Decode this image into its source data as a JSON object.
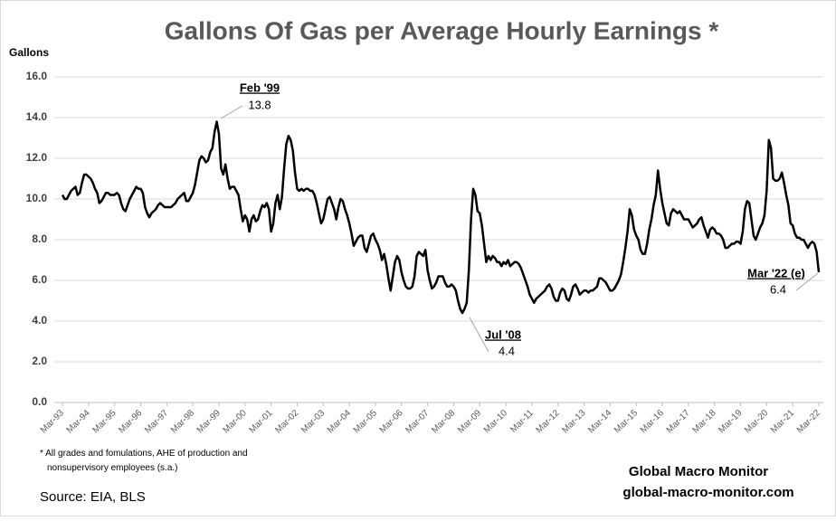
{
  "chart_data": {
    "type": "line",
    "title": "Gallons Of Gas per Average Hourly Earnings *",
    "y_label": "Gallons",
    "categories": [
      "Mar-93",
      null,
      null,
      null,
      null,
      null,
      null,
      null,
      null,
      null,
      null,
      null,
      "Mar-94",
      null,
      null,
      null,
      null,
      null,
      null,
      null,
      null,
      null,
      null,
      null,
      "Mar-95",
      null,
      null,
      null,
      null,
      null,
      null,
      null,
      null,
      null,
      null,
      null,
      "Mar-96",
      null,
      null,
      null,
      null,
      null,
      null,
      null,
      null,
      null,
      null,
      null,
      "Mar-97",
      null,
      null,
      null,
      null,
      null,
      null,
      null,
      null,
      null,
      null,
      null,
      "Mar-98",
      null,
      null,
      null,
      null,
      null,
      null,
      null,
      null,
      null,
      null,
      null,
      "Mar-99",
      null,
      null,
      null,
      null,
      null,
      null,
      null,
      null,
      null,
      null,
      null,
      "Mar-00",
      null,
      null,
      null,
      null,
      null,
      null,
      null,
      null,
      null,
      null,
      null,
      "Mar-01",
      null,
      null,
      null,
      null,
      null,
      null,
      null,
      null,
      null,
      null,
      null,
      "Mar-02",
      null,
      null,
      null,
      null,
      null,
      null,
      null,
      null,
      null,
      null,
      null,
      "Mar-03",
      null,
      null,
      null,
      null,
      null,
      null,
      null,
      null,
      null,
      null,
      null,
      "Mar-04",
      null,
      null,
      null,
      null,
      null,
      null,
      null,
      null,
      null,
      null,
      null,
      "Mar-05",
      null,
      null,
      null,
      null,
      null,
      null,
      null,
      null,
      null,
      null,
      null,
      "Mar-06",
      null,
      null,
      null,
      null,
      null,
      null,
      null,
      null,
      null,
      null,
      null,
      "Mar-07",
      null,
      null,
      null,
      null,
      null,
      null,
      null,
      null,
      null,
      null,
      null,
      "Mar-08",
      null,
      null,
      null,
      null,
      null,
      null,
      null,
      null,
      null,
      null,
      null,
      "Mar-09",
      null,
      null,
      null,
      null,
      null,
      null,
      null,
      null,
      null,
      null,
      null,
      "Mar-10",
      null,
      null,
      null,
      null,
      null,
      null,
      null,
      null,
      null,
      null,
      null,
      "Mar-11",
      null,
      null,
      null,
      null,
      null,
      null,
      null,
      null,
      null,
      null,
      null,
      "Mar-12",
      null,
      null,
      null,
      null,
      null,
      null,
      null,
      null,
      null,
      null,
      null,
      "Mar-13",
      null,
      null,
      null,
      null,
      null,
      null,
      null,
      null,
      null,
      null,
      null,
      "Mar-14",
      null,
      null,
      null,
      null,
      null,
      null,
      null,
      null,
      null,
      null,
      null,
      "Mar-15",
      null,
      null,
      null,
      null,
      null,
      null,
      null,
      null,
      null,
      null,
      null,
      "Mar-16",
      null,
      null,
      null,
      null,
      null,
      null,
      null,
      null,
      null,
      null,
      null,
      "Mar-17",
      null,
      null,
      null,
      null,
      null,
      null,
      null,
      null,
      null,
      null,
      null,
      "Mar-18",
      null,
      null,
      null,
      null,
      null,
      null,
      null,
      null,
      null,
      null,
      null,
      "Mar-19",
      null,
      null,
      null,
      null,
      null,
      null,
      null,
      null,
      null,
      null,
      null,
      "Mar-20",
      null,
      null,
      null,
      null,
      null,
      null,
      null,
      null,
      null,
      null,
      null,
      "Mar-21",
      null,
      null,
      null,
      null,
      null,
      null,
      null,
      null,
      null,
      null,
      null,
      "Mar-22"
    ],
    "values": [
      10.2,
      10.0,
      10.0,
      10.2,
      10.4,
      10.5,
      10.6,
      10.2,
      10.3,
      10.8,
      11.2,
      11.2,
      11.1,
      11.0,
      10.8,
      10.5,
      10.3,
      9.8,
      9.9,
      10.1,
      10.3,
      10.3,
      10.2,
      10.2,
      10.2,
      10.3,
      10.2,
      9.8,
      9.5,
      9.4,
      9.7,
      10.0,
      10.2,
      10.4,
      10.6,
      10.5,
      10.5,
      10.3,
      9.6,
      9.3,
      9.1,
      9.3,
      9.4,
      9.5,
      9.7,
      9.8,
      9.7,
      9.6,
      9.6,
      9.6,
      9.6,
      9.7,
      9.8,
      10.0,
      10.1,
      10.2,
      10.3,
      9.9,
      9.9,
      10.1,
      10.3,
      10.7,
      11.3,
      11.9,
      12.1,
      12.0,
      11.8,
      11.9,
      12.3,
      12.5,
      13.3,
      13.8,
      13.2,
      11.5,
      11.2,
      11.7,
      11.0,
      10.5,
      10.6,
      10.6,
      10.4,
      10.2,
      9.5,
      8.9,
      9.2,
      9.0,
      8.4,
      9.0,
      9.2,
      8.9,
      9.0,
      9.4,
      9.7,
      9.6,
      9.8,
      9.5,
      8.4,
      8.8,
      9.8,
      10.2,
      9.5,
      10.1,
      11.5,
      12.7,
      13.1,
      12.9,
      12.4,
      11.3,
      10.5,
      10.4,
      10.5,
      10.4,
      10.5,
      10.5,
      10.4,
      10.4,
      10.2,
      9.8,
      9.3,
      8.8,
      9.0,
      9.5,
      10.0,
      10.1,
      9.8,
      9.5,
      9.0,
      9.6,
      10.0,
      9.9,
      9.5,
      9.2,
      8.8,
      8.3,
      7.7,
      7.9,
      8.1,
      8.2,
      8.2,
      7.6,
      7.4,
      7.8,
      8.2,
      8.3,
      8.0,
      7.8,
      7.5,
      7.0,
      7.3,
      6.8,
      6.1,
      5.5,
      6.2,
      6.9,
      7.2,
      7.0,
      6.4,
      6.0,
      5.7,
      5.6,
      5.6,
      5.7,
      6.2,
      7.2,
      7.4,
      7.3,
      7.2,
      7.5,
      6.5,
      6.0,
      5.6,
      5.7,
      5.9,
      6.2,
      6.2,
      6.2,
      5.9,
      5.7,
      5.7,
      5.8,
      5.7,
      5.5,
      5.0,
      4.6,
      4.4,
      4.6,
      4.9,
      6.5,
      9.0,
      10.5,
      10.2,
      9.4,
      9.3,
      8.7,
      7.8,
      6.9,
      7.2,
      7.0,
      7.2,
      7.1,
      6.9,
      6.9,
      6.7,
      6.9,
      6.8,
      7.0,
      6.7,
      6.8,
      6.9,
      6.9,
      6.8,
      6.6,
      6.3,
      6.0,
      5.7,
      5.3,
      5.1,
      4.9,
      5.1,
      5.2,
      5.3,
      5.4,
      5.5,
      5.7,
      5.8,
      5.6,
      5.2,
      5.0,
      5.0,
      5.4,
      5.6,
      5.5,
      5.1,
      5.0,
      5.3,
      5.7,
      5.8,
      5.6,
      5.3,
      5.4,
      5.5,
      5.5,
      5.4,
      5.5,
      5.5,
      5.6,
      5.7,
      6.1,
      6.1,
      6.0,
      5.9,
      5.7,
      5.5,
      5.5,
      5.6,
      5.8,
      6.0,
      6.3,
      6.9,
      7.6,
      8.4,
      9.5,
      9.2,
      8.5,
      8.2,
      8.0,
      7.5,
      7.3,
      7.3,
      7.8,
      8.5,
      9.0,
      9.7,
      10.2,
      11.4,
      10.5,
      9.8,
      9.3,
      8.8,
      8.7,
      9.3,
      9.5,
      9.4,
      9.3,
      9.4,
      9.2,
      9.0,
      9.0,
      9.0,
      8.8,
      8.6,
      8.7,
      8.8,
      9.0,
      9.1,
      8.7,
      8.4,
      8.1,
      8.5,
      8.6,
      8.5,
      8.3,
      8.3,
      8.2,
      8.0,
      7.6,
      7.6,
      7.7,
      7.8,
      7.8,
      7.9,
      7.9,
      7.8,
      8.4,
      9.5,
      9.9,
      9.8,
      9.0,
      8.2,
      8.0,
      8.3,
      8.6,
      8.8,
      9.2,
      10.4,
      12.9,
      12.5,
      11.0,
      10.9,
      10.9,
      11.0,
      11.3,
      10.8,
      10.2,
      9.7,
      8.8,
      8.7,
      8.3,
      8.1,
      8.1,
      8.0,
      8.0,
      7.8,
      7.6,
      7.8,
      7.9,
      7.8,
      7.4,
      6.4
    ],
    "color": "#000000",
    "ylim": [
      0,
      16
    ],
    "yticks": [
      {
        "value": 0,
        "label": "0.0"
      },
      {
        "value": 2,
        "label": "2.0"
      },
      {
        "value": 4,
        "label": "4.0"
      },
      {
        "value": 6,
        "label": "6.0"
      },
      {
        "value": 8,
        "label": "8.0"
      },
      {
        "value": 10,
        "label": "10.0"
      },
      {
        "value": 12,
        "label": "12.0"
      },
      {
        "value": 14,
        "label": "14.0"
      },
      {
        "value": 16,
        "label": "16.0"
      }
    ],
    "grid": true,
    "annotations": [
      {
        "label": "Feb '99",
        "value": 13.8
      },
      {
        "label": "Jul '08",
        "value": 4.4
      },
      {
        "label": "Mar '22 (e)",
        "value": 6.4
      }
    ],
    "footnote": "* All grades and fomulations, AHE of production and nonsupervisory employees (s.a.)",
    "source": "Source:  EIA, BLS",
    "brand": "Global Macro Monitor",
    "website": "global-macro-monitor.com"
  }
}
